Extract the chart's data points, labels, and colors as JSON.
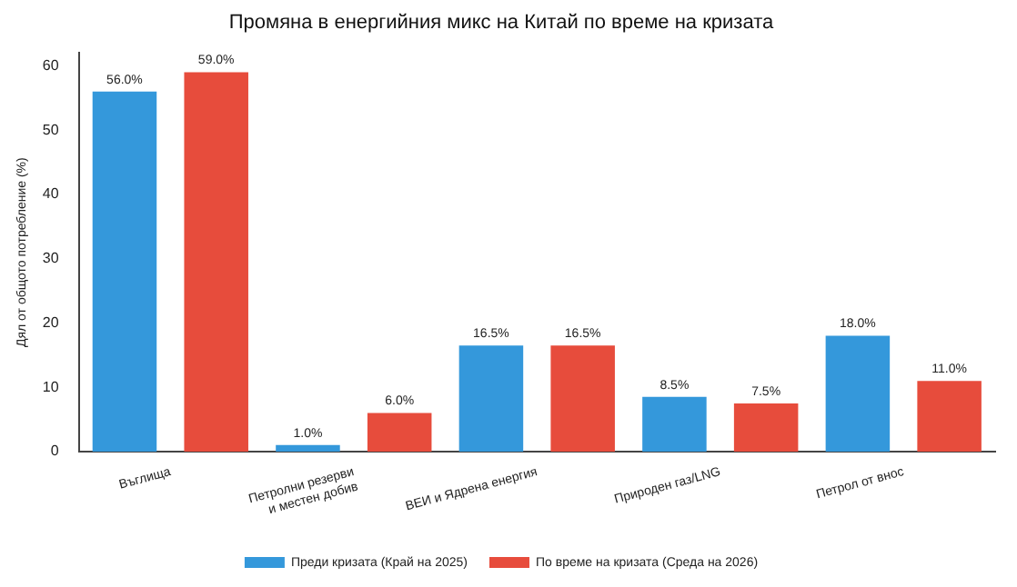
{
  "chart_data": {
    "type": "bar",
    "title": "Промяна в енергийния микс на Китай по време на кризата",
    "ylabel": "Дял от общото потребление (%)",
    "categories": [
      "Въглища",
      "Петролни резерви\nи местен добив",
      "ВЕИ и Ядрена енергия",
      "Природен газ/LNG",
      "Петрол от внос"
    ],
    "series": [
      {
        "name": "Преди кризата (Край на 2025)",
        "color": "#3498db",
        "values": [
          56.0,
          1.0,
          16.5,
          8.5,
          18.0
        ],
        "value_labels": [
          "56.0%",
          "1.0%",
          "16.5%",
          "8.5%",
          "18.0%"
        ]
      },
      {
        "name": "По време на кризата (Среда на 2026)",
        "color": "#e74c3c",
        "values": [
          59.0,
          6.0,
          16.5,
          7.5,
          11.0
        ],
        "value_labels": [
          "59.0%",
          "6.0%",
          "16.5%",
          "7.5%",
          "11.0%"
        ]
      }
    ],
    "ylim": [
      0,
      62
    ],
    "yticks": [
      0,
      10,
      20,
      30,
      40,
      50,
      60
    ],
    "grid": false,
    "legend": "bottom"
  }
}
